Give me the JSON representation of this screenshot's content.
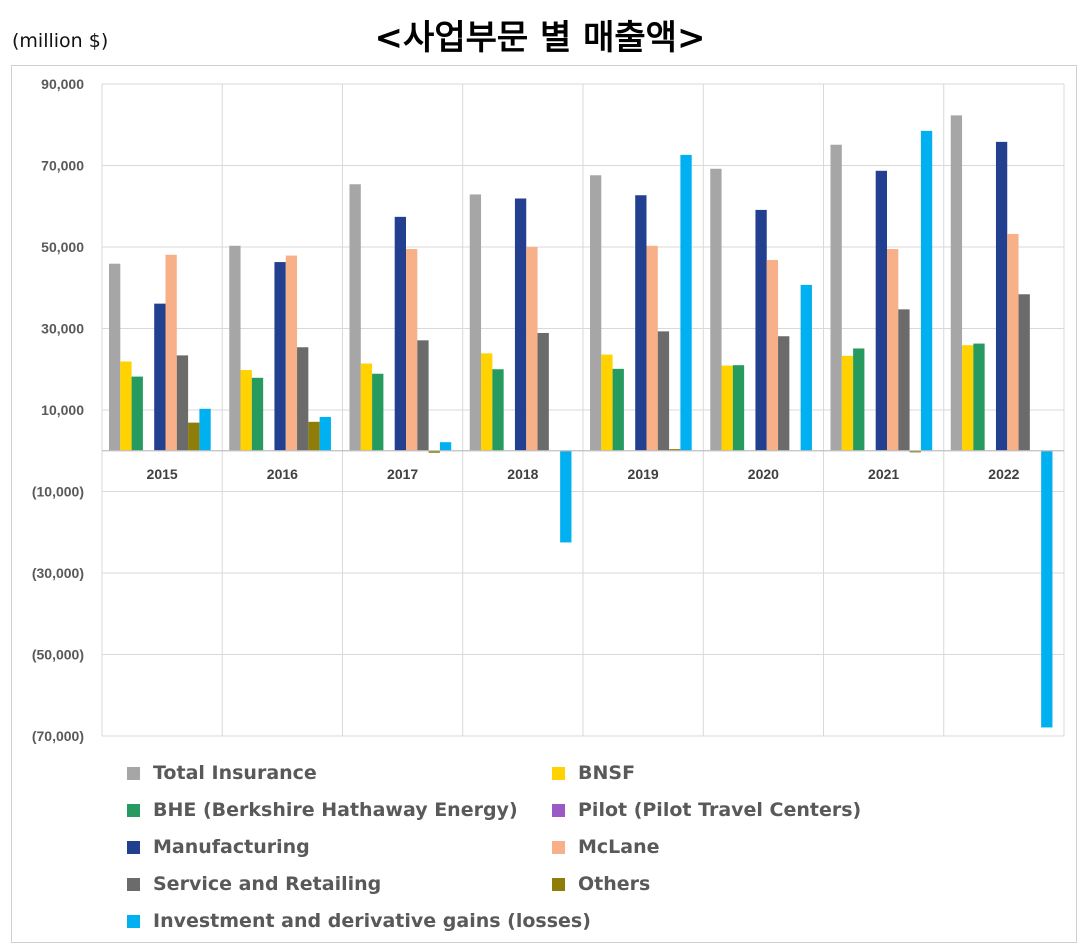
{
  "title": "<사업부문 별 매출액>",
  "unit_label": "(million $)",
  "colors": {
    "Total Insurance": "#a6a6a6",
    "BNSF": "#ffd200",
    "BHE (Berkshire Hathaway Energy)": "#279a5f",
    "Pilot (Pilot Travel Centers)": "#9b59c6",
    "Manufacturing": "#22408f",
    "McLane": "#f8b088",
    "Service and Retailing": "#6b6b6b",
    "Others": "#8f7d0a",
    "Investment and derivative gains (losses)": "#00b0f0"
  },
  "chart_data": {
    "type": "bar",
    "categories": [
      "2015",
      "2016",
      "2017",
      "2018",
      "2019",
      "2020",
      "2021",
      "2022"
    ],
    "ylim": [
      -70000,
      90000
    ],
    "yticks": [
      90000,
      70000,
      50000,
      30000,
      10000,
      -10000,
      -30000,
      -50000,
      -70000
    ],
    "ytick_labels": [
      "90,000",
      "70,000",
      "50,000",
      "30,000",
      "10,000",
      "(10,000)",
      "(30,000)",
      "(50,000)",
      "(70,000)"
    ],
    "grid": true,
    "legend_position": "bottom",
    "series": [
      {
        "name": "Total Insurance",
        "values": [
          45900,
          50300,
          65400,
          62900,
          67600,
          69200,
          75100,
          82300
        ]
      },
      {
        "name": "BNSF",
        "values": [
          21900,
          19800,
          21400,
          23900,
          23600,
          20900,
          23300,
          25900
        ]
      },
      {
        "name": "BHE (Berkshire Hathaway Energy)",
        "values": [
          18200,
          17900,
          18900,
          20000,
          20100,
          21000,
          25100,
          26300
        ]
      },
      {
        "name": "Pilot (Pilot Travel Centers)",
        "values": [
          0,
          0,
          0,
          0,
          0,
          0,
          0,
          0
        ]
      },
      {
        "name": "Manufacturing",
        "values": [
          36100,
          46300,
          57400,
          61900,
          62700,
          59100,
          68700,
          75800
        ]
      },
      {
        "name": "McLane",
        "values": [
          48100,
          47900,
          49500,
          50000,
          50300,
          46800,
          49500,
          53200
        ]
      },
      {
        "name": "Service and Retailing",
        "values": [
          23400,
          25400,
          27100,
          28900,
          29300,
          28100,
          34700,
          38400
        ]
      },
      {
        "name": "Others",
        "values": [
          6900,
          7100,
          -500,
          0,
          400,
          0,
          -400,
          0
        ]
      },
      {
        "name": "Investment and derivative gains (losses)",
        "values": [
          10300,
          8300,
          2100,
          -22500,
          72600,
          40700,
          78500,
          -67900
        ]
      }
    ]
  }
}
